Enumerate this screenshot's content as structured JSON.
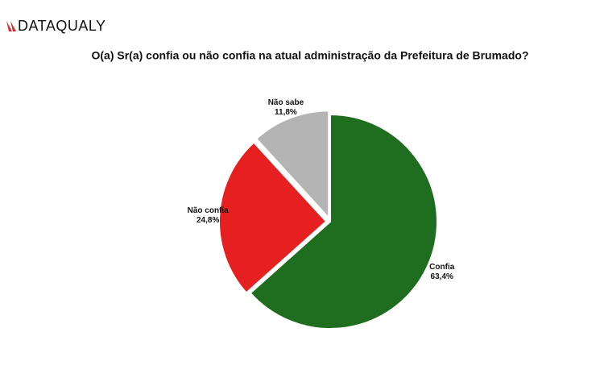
{
  "brand": "DATAQUALY",
  "chart_data": {
    "type": "pie",
    "title": "O(a) Sr(a) confia ou não confia na atual administração da Prefeitura de Brumado?",
    "categories": [
      "Confia",
      "Não confia",
      "Não sabe"
    ],
    "values": [
      63.4,
      24.8,
      11.8
    ],
    "value_labels": [
      "63,4%",
      "24,8%",
      "11,8%"
    ],
    "colors": [
      "#1f6e1f",
      "#e62020",
      "#b4b4b4"
    ]
  }
}
